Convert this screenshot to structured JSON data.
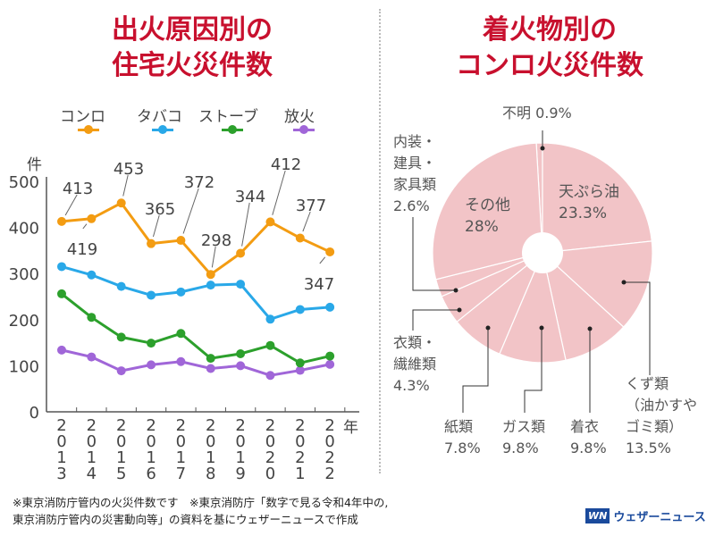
{
  "chart_data": [
    {
      "type": "line",
      "title": "出火原因別の住宅火災件数",
      "title_lines": [
        "出火原因別の",
        "住宅火災件数"
      ],
      "ylabel": "件",
      "xlabel": "年",
      "ylim": [
        0,
        500
      ],
      "yticks": [
        0,
        100,
        200,
        300,
        400,
        500
      ],
      "categories": [
        "2013",
        "2014",
        "2015",
        "2016",
        "2017",
        "2018",
        "2019",
        "2020",
        "2021",
        "2022"
      ],
      "series": [
        {
          "name": "コンロ",
          "color": "#f39c12",
          "values": [
            413,
            419,
            453,
            365,
            372,
            298,
            344,
            412,
            377,
            347
          ],
          "labeled": true
        },
        {
          "name": "タバコ",
          "color": "#29a8e8",
          "values": [
            315,
            297,
            272,
            253,
            260,
            275,
            277,
            201,
            222,
            227
          ],
          "labeled": false
        },
        {
          "name": "ストーブ",
          "color": "#2ca02c",
          "values": [
            256,
            205,
            162,
            149,
            170,
            116,
            126,
            144,
            106,
            121
          ],
          "labeled": false
        },
        {
          "name": "放火",
          "color": "#a066d8",
          "values": [
            134,
            119,
            89,
            102,
            109,
            94,
            100,
            79,
            90,
            103
          ],
          "labeled": false
        }
      ],
      "legend": "top"
    },
    {
      "type": "pie",
      "title": "着火物別のコンロ火災件数",
      "title_lines": [
        "着火物別の",
        "コンロ火災件数"
      ],
      "slice_color": "#f2c4c7",
      "slices": [
        {
          "name": "不明",
          "label": "不明",
          "value": 0.9,
          "pct": "0.9%"
        },
        {
          "name": "天ぷら油",
          "label": "天ぷら油",
          "value": 23.3,
          "pct": "23.3%"
        },
        {
          "name": "くず類（油かすやゴミ類）",
          "label_lines": [
            "くず類",
            "（油かすや",
            "ゴミ類）"
          ],
          "value": 13.5,
          "pct": "13.5%"
        },
        {
          "name": "着衣",
          "label": "着衣",
          "value": 9.8,
          "pct": "9.8%"
        },
        {
          "name": "ガス類",
          "label": "ガス類",
          "value": 9.8,
          "pct": "9.8%"
        },
        {
          "name": "紙類",
          "label": "紙類",
          "value": 7.8,
          "pct": "7.8%"
        },
        {
          "name": "衣類・繊維類",
          "label_lines": [
            "衣類・",
            "繊維類"
          ],
          "value": 4.3,
          "pct": "4.3%"
        },
        {
          "name": "内装・建具・家具類",
          "label_lines": [
            "内装・",
            "建具・",
            "家具類"
          ],
          "value": 2.6,
          "pct": "2.6%"
        },
        {
          "name": "その他",
          "label": "その他",
          "value": 28,
          "pct": "28%"
        }
      ]
    }
  ],
  "footer": {
    "line1": "※東京消防庁管内の火災件数です　※東京消防庁「数字で見る令和4年中の,",
    "line2": "東京消防庁管内の災害動向等」の資料を基にウェザーニュースで作成"
  },
  "brand": {
    "mark": "WN",
    "name": "ウェザーニュース"
  }
}
